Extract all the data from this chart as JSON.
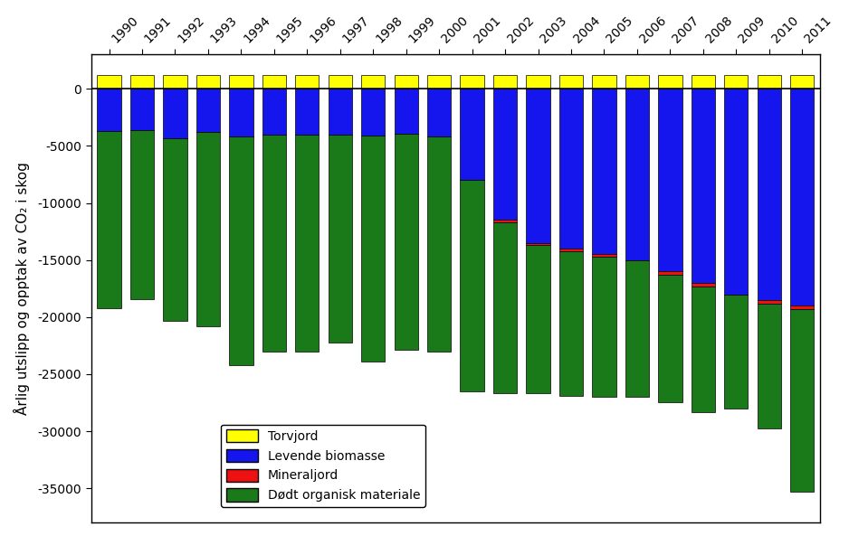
{
  "years": [
    1990,
    1991,
    1992,
    1993,
    1994,
    1995,
    1996,
    1997,
    1998,
    1999,
    2000,
    2001,
    2002,
    2003,
    2004,
    2005,
    2006,
    2007,
    2008,
    2009,
    2010,
    2011
  ],
  "torvjord": [
    1200,
    1200,
    1200,
    1200,
    1200,
    1200,
    1200,
    1200,
    1200,
    1200,
    1200,
    1200,
    1200,
    1200,
    1200,
    1200,
    1200,
    1200,
    1200,
    1200,
    1200,
    1200
  ],
  "levende_biomasse": [
    -3700,
    -3600,
    -4300,
    -3800,
    -4200,
    -4000,
    -4000,
    -4000,
    -4100,
    -3900,
    -4200,
    -8000,
    -11500,
    -13500,
    -14000,
    -14500,
    -15000,
    -16000,
    -17000,
    -18000,
    -18500,
    -19000
  ],
  "mineraljord": [
    0,
    0,
    0,
    0,
    0,
    0,
    0,
    0,
    0,
    0,
    0,
    0,
    -200,
    -200,
    -200,
    -200,
    0,
    -300,
    -300,
    0,
    -300,
    -300
  ],
  "dodt_organisk": [
    -15500,
    -14800,
    -16000,
    -17000,
    -20000,
    -19000,
    -19000,
    -18200,
    -19800,
    -19000,
    -18800,
    -18500,
    -15000,
    -13000,
    -12700,
    -12300,
    -12000,
    -11200,
    -11000,
    -10000,
    -11000,
    -16000
  ],
  "ylabel": "Årlig utslipp og opptak av CO₂ i skog",
  "ylim": [
    -38000,
    3000
  ],
  "yticks": [
    0,
    -5000,
    -10000,
    -15000,
    -20000,
    -25000,
    -30000,
    -35000
  ],
  "legend_labels": [
    "Torvjord",
    "Levende biomasse",
    "Mineraljord",
    "Dødt organisk materiale"
  ],
  "colors": {
    "torvjord": "#FFFF00",
    "levende_biomasse": "#1515EE",
    "mineraljord": "#EE1111",
    "dodt_organisk": "#1A7A1A"
  },
  "bar_width": 0.72,
  "background_color": "#FFFFFF"
}
